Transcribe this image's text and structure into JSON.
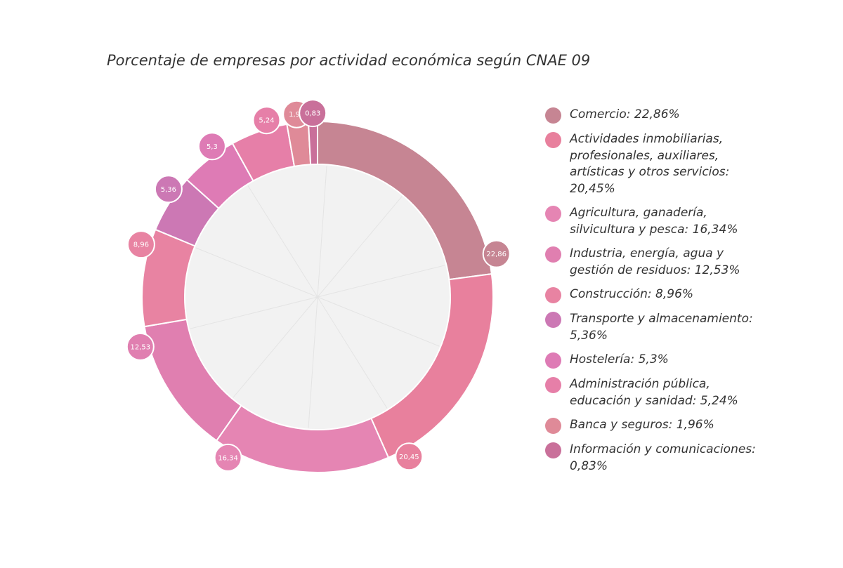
{
  "chart_data": {
    "type": "pie",
    "title": "Porcentaje de empresas por actividad económica según CNAE 09",
    "legend_position": "right",
    "slices": [
      {
        "legend_label": "Comercio: 22,86%",
        "value": 22.86,
        "data_label": "22,86",
        "color": "#c68593"
      },
      {
        "legend_label": "Actividades inmobiliarias, profesionales, auxiliares, artísticas y otros servicios: 20,45%",
        "value": 20.45,
        "data_label": "20,45",
        "color": "#e8809d"
      },
      {
        "legend_label": "Agricultura, ganadería, silvicultura y pesca: 16,34%",
        "value": 16.34,
        "data_label": "16,34",
        "color": "#e585b3"
      },
      {
        "legend_label": "Industria, energía, agua y gestión de residuos: 12,53%",
        "value": 12.53,
        "data_label": "12,53",
        "color": "#e07fb0"
      },
      {
        "legend_label": "Construcción: 8,96%",
        "value": 8.96,
        "data_label": "8,96",
        "color": "#e883a2"
      },
      {
        "legend_label": "Transporte y almacenamiento: 5,36%",
        "value": 5.36,
        "data_label": "5,36",
        "color": "#cc78b4"
      },
      {
        "legend_label": "Hostelería: 5,3%",
        "value": 5.3,
        "data_label": "5,3",
        "color": "#de7bb5"
      },
      {
        "legend_label": "Administración pública, educación y sanidad: 5,24%",
        "value": 5.24,
        "data_label": "5,24",
        "color": "#e67fa8"
      },
      {
        "legend_label": "Banca y seguros: 1,96%",
        "value": 1.96,
        "data_label": "1,96",
        "color": "#df8a98"
      },
      {
        "legend_label": "Información y comunicaciones: 0,83%",
        "value": 0.83,
        "data_label": "0,83",
        "color": "#c9709a"
      }
    ]
  }
}
